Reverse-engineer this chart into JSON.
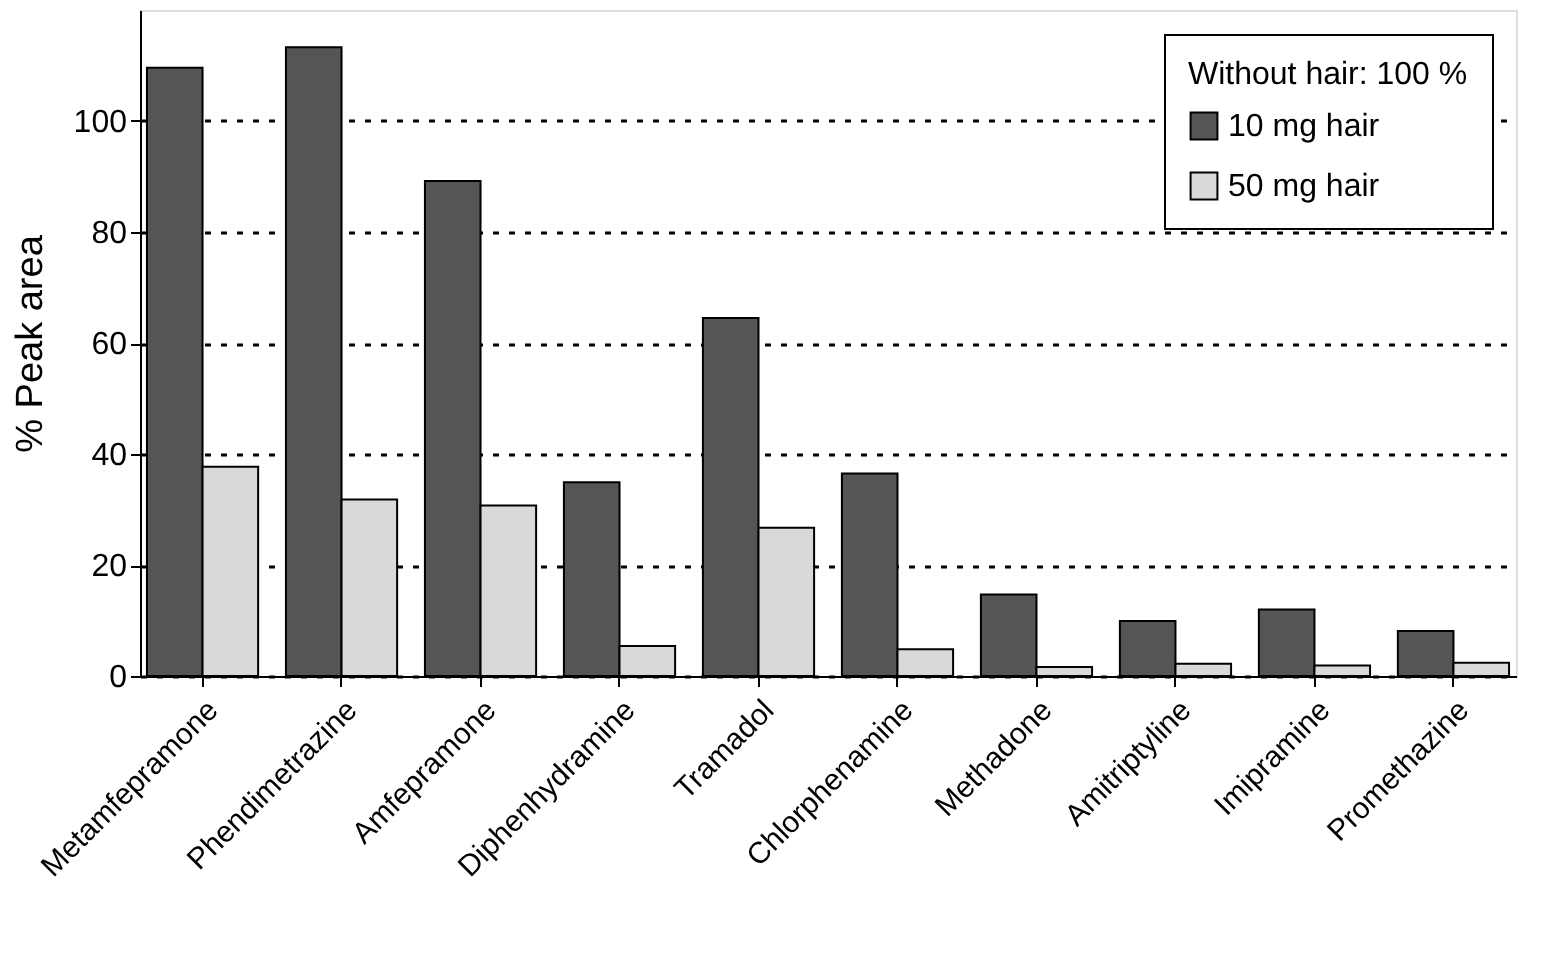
{
  "chart_data": {
    "type": "bar",
    "ylabel": "% Peak area",
    "legend_title": "Without hair: 100 %",
    "categories": [
      "Metamfepramone",
      "Phendimetrazine",
      "Amfepramone",
      "Diphenhydramine",
      "Tramadol",
      "Chlorphenamine",
      "Methadone",
      "Amitriptyline",
      "Imipramine",
      "Promethazine"
    ],
    "series": [
      {
        "name": "10 mg hair",
        "color": "#555555",
        "values": [
          109.6,
          113.3,
          89.2,
          34.9,
          64.5,
          36.5,
          14.7,
          9.9,
          12,
          8.1
        ]
      },
      {
        "name": "50 mg hair",
        "color": "#d9d9d9",
        "values": [
          37.7,
          31.8,
          30.7,
          5.4,
          26.7,
          4.8,
          1.6,
          2.2,
          1.9,
          2.4
        ]
      }
    ],
    "ylim": [
      0,
      120
    ],
    "yticks": [
      0,
      20,
      40,
      60,
      80,
      100
    ],
    "grid": "y",
    "legend": "top right"
  }
}
